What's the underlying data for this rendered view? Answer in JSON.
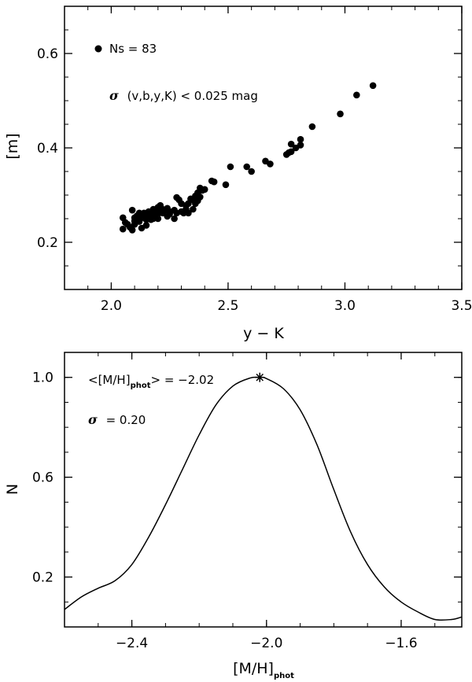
{
  "chart_data": [
    {
      "type": "scatter",
      "xlabel": "y − K",
      "ylabel": "[m]",
      "xlim": [
        1.8,
        3.5
      ],
      "ylim": [
        0.1,
        0.7
      ],
      "xticks": [
        "2.0",
        "2.5",
        "3.0",
        "3.5"
      ],
      "yticks": [
        "0.2",
        "0.4",
        "0.6"
      ],
      "grid": false,
      "annotations": {
        "ns_label": "Ns = 83",
        "sigma_symbol": "σ",
        "sigma_text": "(v,b,y,K) < 0.025 mag"
      },
      "points": [
        [
          2.05,
          0.228
        ],
        [
          2.05,
          0.252
        ],
        [
          2.06,
          0.242
        ],
        [
          2.07,
          0.238
        ],
        [
          2.08,
          0.232
        ],
        [
          2.09,
          0.226
        ],
        [
          2.09,
          0.268
        ],
        [
          2.1,
          0.252
        ],
        [
          2.1,
          0.245
        ],
        [
          2.11,
          0.256
        ],
        [
          2.12,
          0.244
        ],
        [
          2.12,
          0.262
        ],
        [
          2.13,
          0.252
        ],
        [
          2.13,
          0.23
        ],
        [
          2.14,
          0.262
        ],
        [
          2.14,
          0.255
        ],
        [
          2.15,
          0.248
        ],
        [
          2.15,
          0.236
        ],
        [
          2.16,
          0.265
        ],
        [
          2.16,
          0.254
        ],
        [
          2.17,
          0.248
        ],
        [
          2.17,
          0.26
        ],
        [
          2.18,
          0.27
        ],
        [
          2.18,
          0.256
        ],
        [
          2.19,
          0.262
        ],
        [
          2.2,
          0.274
        ],
        [
          2.2,
          0.25
        ],
        [
          2.21,
          0.264
        ],
        [
          2.21,
          0.278
        ],
        [
          2.22,
          0.262
        ],
        [
          2.23,
          0.268
        ],
        [
          2.24,
          0.255
        ],
        [
          2.25,
          0.265
        ],
        [
          2.25,
          0.26
        ],
        [
          2.27,
          0.25
        ],
        [
          2.28,
          0.262
        ],
        [
          2.28,
          0.295
        ],
        [
          2.29,
          0.29
        ],
        [
          2.3,
          0.265
        ],
        [
          2.3,
          0.282
        ],
        [
          2.31,
          0.262
        ],
        [
          2.32,
          0.278
        ],
        [
          2.33,
          0.282
        ],
        [
          2.33,
          0.262
        ],
        [
          2.34,
          0.292
        ],
        [
          2.35,
          0.27
        ],
        [
          2.36,
          0.282
        ],
        [
          2.36,
          0.298
        ],
        [
          2.37,
          0.305
        ],
        [
          2.37,
          0.288
        ],
        [
          2.38,
          0.315
        ],
        [
          2.38,
          0.296
        ],
        [
          2.39,
          0.31
        ],
        [
          2.4,
          0.312
        ],
        [
          2.43,
          0.33
        ],
        [
          2.44,
          0.328
        ],
        [
          2.49,
          0.322
        ],
        [
          2.51,
          0.36
        ],
        [
          2.58,
          0.36
        ],
        [
          2.6,
          0.35
        ],
        [
          2.66,
          0.372
        ],
        [
          2.68,
          0.366
        ],
        [
          2.75,
          0.386
        ],
        [
          2.76,
          0.39
        ],
        [
          2.77,
          0.392
        ],
        [
          2.77,
          0.408
        ],
        [
          2.79,
          0.4
        ],
        [
          2.81,
          0.406
        ],
        [
          2.81,
          0.418
        ],
        [
          2.86,
          0.445
        ],
        [
          2.98,
          0.472
        ],
        [
          3.05,
          0.512
        ],
        [
          3.12,
          0.532
        ],
        [
          2.1,
          0.238
        ],
        [
          2.2,
          0.26
        ],
        [
          2.24,
          0.272
        ],
        [
          2.27,
          0.268
        ],
        [
          2.32,
          0.27
        ],
        [
          2.15,
          0.258
        ],
        [
          2.18,
          0.25
        ],
        [
          2.22,
          0.27
        ],
        [
          2.35,
          0.29
        ],
        [
          2.12,
          0.25
        ]
      ]
    },
    {
      "type": "line",
      "xlabel_main": "[M/H]",
      "xlabel_sub": "phot",
      "ylabel": "N",
      "xlim": [
        -2.6,
        -1.42
      ],
      "ylim": [
        0.0,
        1.1
      ],
      "xticks": [
        "−2.4",
        "−2.0",
        "−1.6"
      ],
      "yticks": [
        "0.2",
        "0.6",
        "1.0"
      ],
      "grid": false,
      "annotations": {
        "mean_prefix": "<[M/H]",
        "mean_sub": "phot",
        "mean_suffix": "> = −2.02",
        "sigma_symbol": "σ",
        "sigma_text": "= 0.20"
      },
      "peak_marker": {
        "x": -2.02,
        "y": 1.0
      },
      "series": [
        {
          "x": [
            -2.6,
            -2.55,
            -2.5,
            -2.45,
            -2.4,
            -2.35,
            -2.3,
            -2.25,
            -2.2,
            -2.15,
            -2.1,
            -2.05,
            -2.02,
            -2.0,
            -1.95,
            -1.9,
            -1.85,
            -1.8,
            -1.75,
            -1.7,
            -1.65,
            -1.6,
            -1.55,
            -1.5,
            -1.45,
            -1.42
          ],
          "y": [
            0.07,
            0.12,
            0.155,
            0.185,
            0.25,
            0.36,
            0.49,
            0.63,
            0.77,
            0.89,
            0.965,
            0.997,
            1.0,
            0.995,
            0.955,
            0.87,
            0.73,
            0.55,
            0.38,
            0.25,
            0.16,
            0.1,
            0.06,
            0.03,
            0.03,
            0.04
          ]
        }
      ]
    }
  ]
}
